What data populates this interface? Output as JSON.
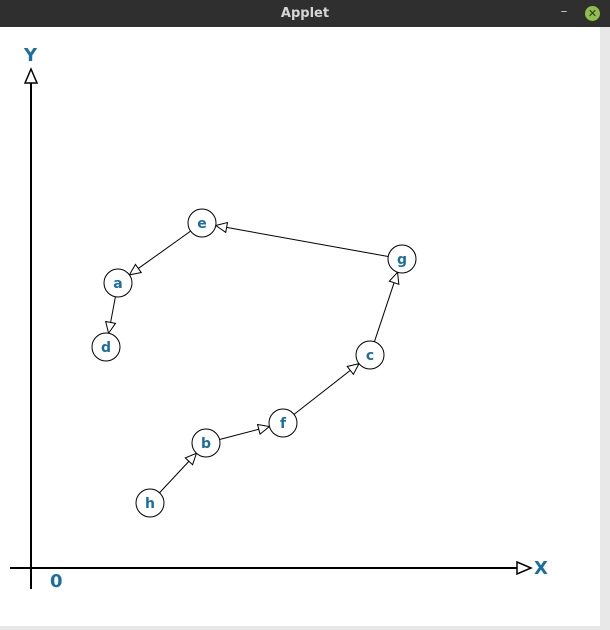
{
  "window": {
    "title": "Applet",
    "minimize_glyph": "–",
    "close_glyph": "✕"
  },
  "graph": {
    "axis_x_label": "X",
    "axis_y_label": "Y",
    "origin_label": "0",
    "nodes": [
      {
        "id": "a"
      },
      {
        "id": "b"
      },
      {
        "id": "c"
      },
      {
        "id": "d"
      },
      {
        "id": "e"
      },
      {
        "id": "f"
      },
      {
        "id": "g"
      },
      {
        "id": "h"
      }
    ],
    "edges": [
      {
        "from": "h",
        "to": "b"
      },
      {
        "from": "b",
        "to": "f"
      },
      {
        "from": "f",
        "to": "c"
      },
      {
        "from": "c",
        "to": "g"
      },
      {
        "from": "g",
        "to": "e"
      },
      {
        "from": "e",
        "to": "a"
      },
      {
        "from": "a",
        "to": "d"
      }
    ],
    "colors": {
      "label": "#1a6fa0",
      "line": "#000000",
      "node_fill": "#ffffff"
    }
  }
}
